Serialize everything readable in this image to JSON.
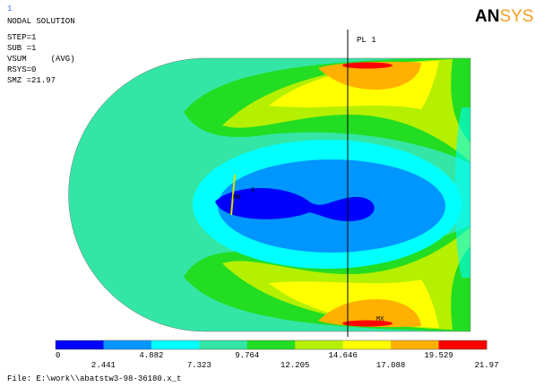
{
  "header": {
    "id": "1",
    "title": "NODAL SOLUTION",
    "lines": [
      "STEP=1",
      "SUB =1",
      "VSUM     (AVG)",
      "RSYS=0",
      "SMZ =21.97"
    ]
  },
  "logo": {
    "left": "AN",
    "right": "SYS"
  },
  "plot": {
    "path_label": "PL 1",
    "min_label": "MN",
    "max_label": "MX",
    "axis_label": "X"
  },
  "legend": {
    "colors": [
      "#0000ff",
      "#0096ff",
      "#00ffff",
      "#33e6a6",
      "#22dd22",
      "#b4f000",
      "#ffff00",
      "#ffb000",
      "#ff0000"
    ],
    "labels": [
      "0",
      "2.441",
      "4.882",
      "7.323",
      "9.764",
      "12.205",
      "14.646",
      "17.088",
      "19.529",
      "21.97"
    ]
  },
  "footer": "File: E:\\work\\\\abatstw3-98-36180.x_t"
}
